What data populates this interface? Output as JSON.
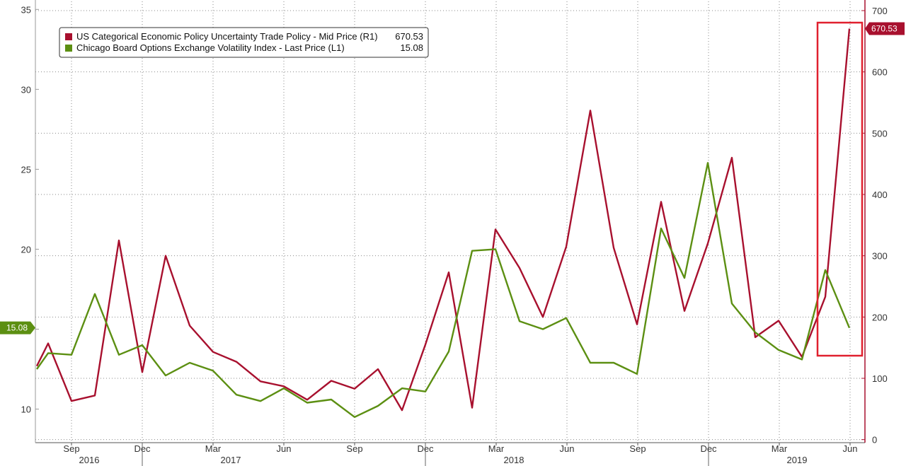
{
  "chart_data": {
    "type": "line",
    "grid": true,
    "legend_position": "top-left",
    "x": [
      "2016-07",
      "2016-08",
      "2016-09",
      "2016-10",
      "2016-11",
      "2016-12",
      "2017-01",
      "2017-02",
      "2017-03",
      "2017-04",
      "2017-05",
      "2017-06",
      "2017-07",
      "2017-08",
      "2017-09",
      "2017-10",
      "2017-11",
      "2017-12",
      "2017-13",
      "2018-01",
      "2018-02",
      "2018-03",
      "2018-04",
      "2018-05",
      "2018-06",
      "2018-07",
      "2018-08",
      "2018-09",
      "2018-10",
      "2018-11",
      "2018-12",
      "2019-01",
      "2019-02",
      "2019-03",
      "2019-04",
      "2019-05",
      "2019-06"
    ],
    "x_ticks": [
      {
        "month": "Sep",
        "year": "2016",
        "year_tick": false
      },
      {
        "month": "Dec",
        "year": "",
        "year_tick": true
      },
      {
        "month": "Mar",
        "year": "2017",
        "year_tick": false
      },
      {
        "month": "Jun",
        "year": "",
        "year_tick": false
      },
      {
        "month": "Sep",
        "year": "",
        "year_tick": false
      },
      {
        "month": "Dec",
        "year": "",
        "year_tick": true
      },
      {
        "month": "Mar",
        "year": "2018",
        "year_tick": false
      },
      {
        "month": "Jun",
        "year": "",
        "year_tick": false
      },
      {
        "month": "Sep",
        "year": "",
        "year_tick": false
      },
      {
        "month": "Dec",
        "year": "",
        "year_tick": true
      },
      {
        "month": "Mar",
        "year": "2019",
        "year_tick": false
      },
      {
        "month": "Jun",
        "year": "",
        "year_tick": false
      }
    ],
    "y_left": {
      "min": 7.9,
      "max": 35.5,
      "ticks": [
        10,
        15,
        20,
        25,
        30,
        35
      ]
    },
    "y_right": {
      "min": -5,
      "max": 715,
      "ticks": [
        0,
        100,
        200,
        300,
        400,
        500,
        600,
        700
      ]
    },
    "series": [
      {
        "name": "US Categorical Economic Policy Uncertainty Trade Policy - Mid Price (R1)",
        "last_value": "670.53",
        "axis": "right",
        "color": "#a8102e",
        "points": [
          {
            "x": "2016-07",
            "y": 120
          },
          {
            "x": "2016-07.5",
            "y": 157
          },
          {
            "x": "2016-08",
            "y": 63
          },
          {
            "x": "2016-09",
            "y": 72
          },
          {
            "x": "2016-10",
            "y": 325
          },
          {
            "x": "2016-11",
            "y": 110
          },
          {
            "x": "2016-12",
            "y": 300
          },
          {
            "x": "2017-01",
            "y": 186
          },
          {
            "x": "2017-02",
            "y": 143
          },
          {
            "x": "2017-03",
            "y": 127
          },
          {
            "x": "2017-04",
            "y": 95
          },
          {
            "x": "2017-05",
            "y": 87
          },
          {
            "x": "2017-06",
            "y": 65
          },
          {
            "x": "2017-07",
            "y": 96
          },
          {
            "x": "2017-08",
            "y": 83
          },
          {
            "x": "2017-09",
            "y": 115
          },
          {
            "x": "2017-10",
            "y": 48
          },
          {
            "x": "2017-11",
            "y": 155
          },
          {
            "x": "2017-12",
            "y": 273
          },
          {
            "x": "2018-01",
            "y": 52
          },
          {
            "x": "2018-02",
            "y": 343
          },
          {
            "x": "2018-03",
            "y": 280
          },
          {
            "x": "2018-04",
            "y": 200
          },
          {
            "x": "2018-05",
            "y": 315
          },
          {
            "x": "2018-06",
            "y": 537
          },
          {
            "x": "2018-07",
            "y": 313
          },
          {
            "x": "2018-08",
            "y": 188
          },
          {
            "x": "2018-09",
            "y": 388
          },
          {
            "x": "2018-10",
            "y": 210
          },
          {
            "x": "2018-11",
            "y": 320
          },
          {
            "x": "2018-12",
            "y": 460
          },
          {
            "x": "2019-01",
            "y": 167
          },
          {
            "x": "2019-02",
            "y": 194
          },
          {
            "x": "2019-03",
            "y": 135
          },
          {
            "x": "2019-04",
            "y": 233
          },
          {
            "x": "2019-05",
            "y": 670.53
          }
        ]
      },
      {
        "name": "Chicago Board Options Exchange Volatility Index - Last Price (L1)",
        "last_value": "15.08",
        "axis": "left",
        "color": "#5c8f12",
        "points": [
          {
            "x": "2016-07",
            "y": 12.5
          },
          {
            "x": "2016-07.5",
            "y": 13.5
          },
          {
            "x": "2016-08",
            "y": 13.4
          },
          {
            "x": "2016-09",
            "y": 17.2
          },
          {
            "x": "2016-10",
            "y": 13.4
          },
          {
            "x": "2016-11",
            "y": 14.0
          },
          {
            "x": "2016-12",
            "y": 12.1
          },
          {
            "x": "2017-01",
            "y": 12.9
          },
          {
            "x": "2017-02",
            "y": 12.4
          },
          {
            "x": "2017-03",
            "y": 10.9
          },
          {
            "x": "2017-04",
            "y": 10.5
          },
          {
            "x": "2017-05",
            "y": 11.3
          },
          {
            "x": "2017-06",
            "y": 10.4
          },
          {
            "x": "2017-07",
            "y": 10.6
          },
          {
            "x": "2017-08",
            "y": 9.5
          },
          {
            "x": "2017-09",
            "y": 10.2
          },
          {
            "x": "2017-10",
            "y": 11.3
          },
          {
            "x": "2017-11",
            "y": 11.1
          },
          {
            "x": "2017-12",
            "y": 13.6
          },
          {
            "x": "2018-01",
            "y": 19.9
          },
          {
            "x": "2018-02",
            "y": 20.0
          },
          {
            "x": "2018-03",
            "y": 15.5
          },
          {
            "x": "2018-04",
            "y": 15.0
          },
          {
            "x": "2018-05",
            "y": 15.7
          },
          {
            "x": "2018-06",
            "y": 12.9
          },
          {
            "x": "2018-07",
            "y": 12.9
          },
          {
            "x": "2018-08",
            "y": 12.2
          },
          {
            "x": "2018-09",
            "y": 21.3
          },
          {
            "x": "2018-10",
            "y": 18.2
          },
          {
            "x": "2018-11",
            "y": 25.4
          },
          {
            "x": "2018-12",
            "y": 16.6
          },
          {
            "x": "2019-01",
            "y": 14.8
          },
          {
            "x": "2019-02",
            "y": 13.7
          },
          {
            "x": "2019-03",
            "y": 13.1
          },
          {
            "x": "2019-04",
            "y": 18.7
          },
          {
            "x": "2019-05",
            "y": 15.08
          }
        ]
      }
    ]
  },
  "legend": {
    "items": [
      {
        "label": "US Categorical Economic Policy Uncertainty Trade Policy - Mid Price (R1)",
        "value": "670.53",
        "color": "#a8102e"
      },
      {
        "label": "Chicago Board Options Exchange Volatility Index - Last Price (L1)",
        "value": "15.08",
        "color": "#5c8f12"
      }
    ]
  },
  "badges": {
    "right": {
      "text": "670.53",
      "color": "#a8102e"
    },
    "left": {
      "text": "15.08",
      "color": "#5c8f12"
    }
  },
  "highlight_box_color": "#e0202e",
  "axis_colors": {
    "left": "#9a9a9a",
    "right": "#a8102e",
    "grid": "#8a8a8a"
  }
}
